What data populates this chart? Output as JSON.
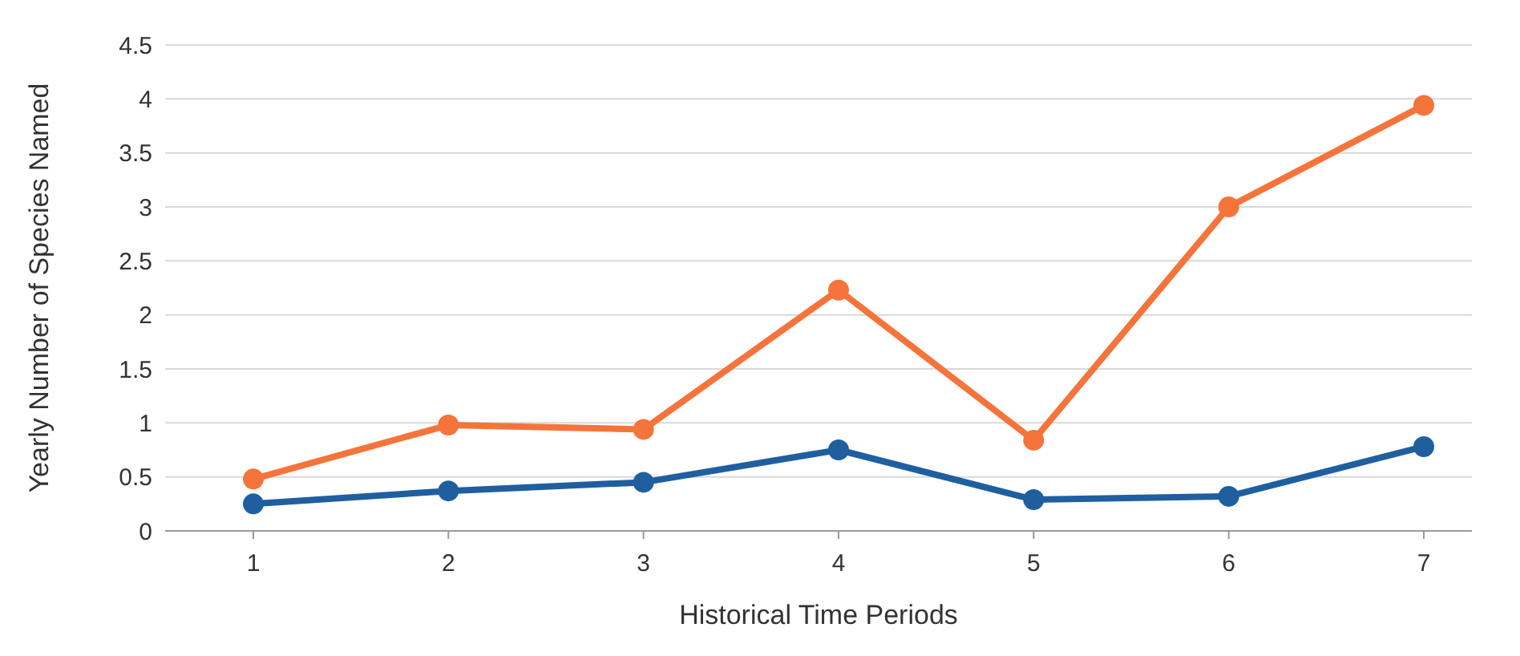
{
  "chart_data": {
    "type": "line",
    "xlabel": "Historical Time Periods",
    "ylabel": "Yearly Number of Species Named",
    "categories": [
      "1",
      "2",
      "3",
      "4",
      "5",
      "6",
      "7"
    ],
    "series": [
      {
        "color": "#f4743b",
        "values": [
          0.48,
          0.98,
          0.94,
          2.23,
          0.84,
          3.0,
          3.94
        ]
      },
      {
        "color": "#1f5fa0",
        "values": [
          0.25,
          0.37,
          0.45,
          0.75,
          0.29,
          0.32,
          0.78
        ]
      }
    ],
    "ylim": [
      0,
      4.5
    ],
    "yticks": [
      0,
      0.5,
      1,
      1.5,
      2,
      2.5,
      3,
      3.5,
      4,
      4.5
    ],
    "grid": "y",
    "marker": "circle",
    "line_style": "solid"
  }
}
